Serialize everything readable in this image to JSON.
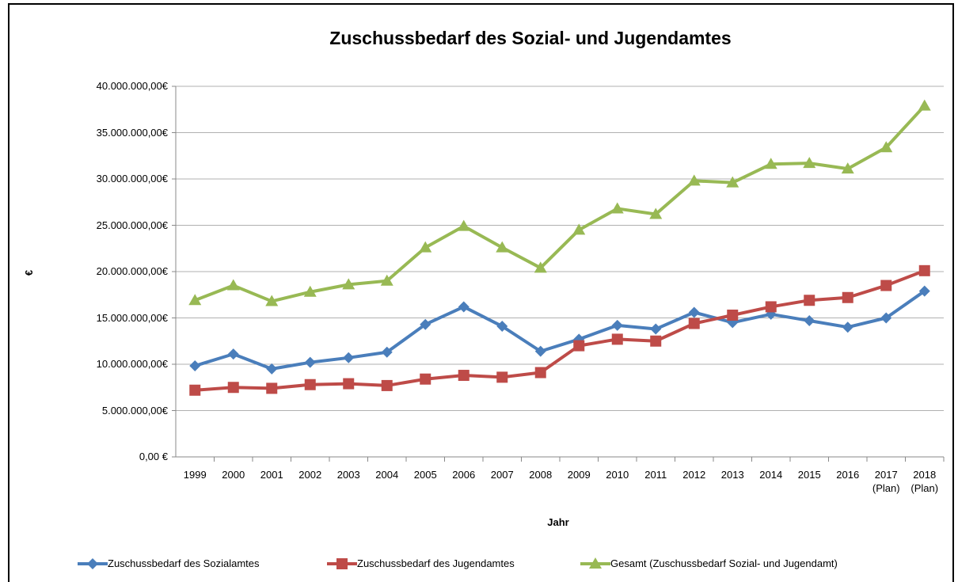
{
  "chart_data": {
    "type": "line",
    "title": "Zuschussbedarf des Sozial- und Jugendamtes",
    "x_label": "Jahr",
    "y_label": "€",
    "categories": [
      "1999",
      "2000",
      "2001",
      "2002",
      "2003",
      "2004",
      "2005",
      "2006",
      "2007",
      "2008",
      "2009",
      "2010",
      "2011",
      "2012",
      "2013",
      "2014",
      "2015",
      "2016",
      "2017\n(Plan)",
      "2018\n(Plan)"
    ],
    "series": [
      {
        "name": "Zuschussbedarf des Sozialamtes",
        "color": "#4a7ebb",
        "values": [
          9830000,
          11100000,
          9500000,
          10200000,
          10700000,
          11300000,
          14300000,
          16200000,
          14100000,
          11400000,
          12700000,
          14200000,
          13800000,
          15600000,
          14500000,
          15400000,
          14700000,
          14000000,
          15000000,
          17900000
        ]
      },
      {
        "name": "Zuschussbedarf des Jugendamtes",
        "color": "#be4b48",
        "values": [
          7200000,
          7500000,
          7400000,
          7800000,
          7900000,
          7700000,
          8400000,
          8800000,
          8600000,
          9100000,
          12000000,
          12700000,
          12500000,
          14400000,
          15300000,
          16200000,
          16900000,
          17200000,
          18500000,
          20100000
        ]
      },
      {
        "name": "Gesamt (Zuschussbedarf Sozial- und Jugendamt)",
        "color": "#98b954",
        "values": [
          16900000,
          18500000,
          16800000,
          17800000,
          18600000,
          19000000,
          22600000,
          24900000,
          22600000,
          20400000,
          24500000,
          26800000,
          26200000,
          29800000,
          29600000,
          31600000,
          31700000,
          31100000,
          33400000,
          37900000
        ]
      }
    ],
    "ylim": [
      0,
      40000000
    ],
    "yticks": [
      {
        "value": 0,
        "label": "0,00 €"
      },
      {
        "value": 5000000,
        "label": "5.000.000,00€"
      },
      {
        "value": 10000000,
        "label": "10.000.000,00€"
      },
      {
        "value": 15000000,
        "label": "15.000.000,00€"
      },
      {
        "value": 20000000,
        "label": "20.000.000,00€"
      },
      {
        "value": 25000000,
        "label": "25.000.000,00€"
      },
      {
        "value": 30000000,
        "label": "30.000.000,00€"
      },
      {
        "value": 35000000,
        "label": "35.000.000,00€"
      },
      {
        "value": 40000000,
        "label": "40.000.000,00€"
      }
    ],
    "grid": true,
    "legend": "bottom"
  }
}
